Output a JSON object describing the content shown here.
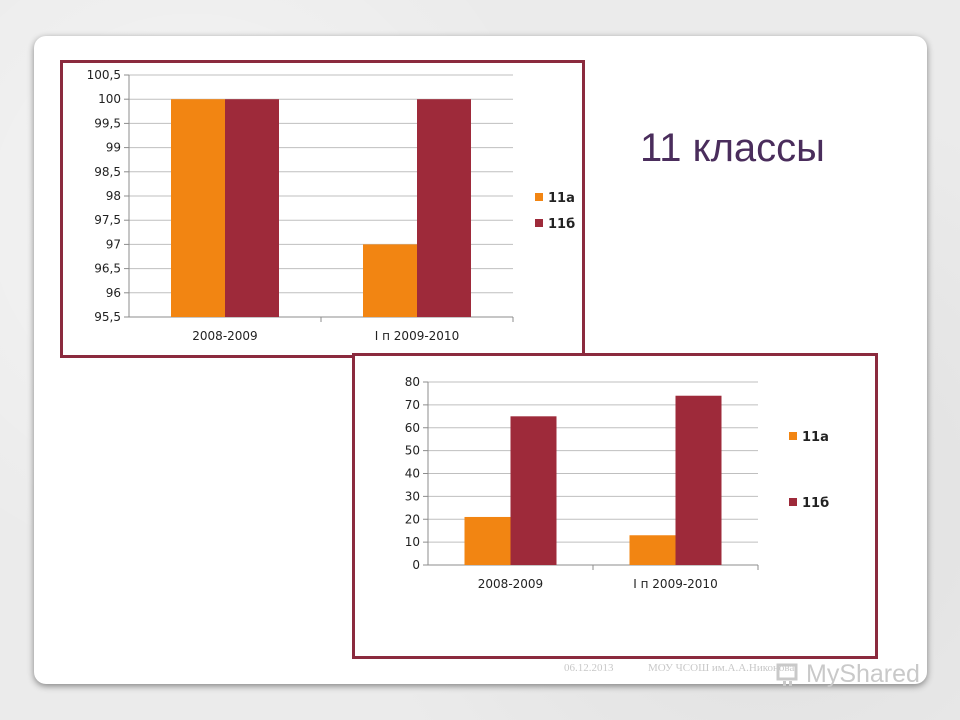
{
  "slide": {
    "title": "11 классы",
    "footer_date": "06.12.2013",
    "footer_org": "МОУ ЧСОШ им.А.А.Никонова",
    "watermark": "MyShared"
  },
  "colors": {
    "series_a": "#f28512",
    "series_b": "#9e2a3a",
    "frame": "#8b2a3e",
    "title": "#4a2d5c"
  },
  "chart_data": [
    {
      "type": "bar",
      "categories": [
        "2008-2009",
        "I п 2009-2010"
      ],
      "series": [
        {
          "name": "11а",
          "values": [
            100,
            97
          ]
        },
        {
          "name": "11б",
          "values": [
            100,
            100
          ]
        }
      ],
      "yticks": [
        "95,5",
        "96",
        "96,5",
        "97",
        "97,5",
        "98",
        "98,5",
        "99",
        "99,5",
        "100",
        "100,5"
      ],
      "ylim": [
        95.5,
        100.5
      ],
      "grid": true,
      "legend": "right"
    },
    {
      "type": "bar",
      "categories": [
        "2008-2009",
        "I п 2009-2010"
      ],
      "series": [
        {
          "name": "11а",
          "values": [
            21,
            13
          ]
        },
        {
          "name": "11б",
          "values": [
            65,
            74
          ]
        }
      ],
      "yticks": [
        "0",
        "10",
        "20",
        "30",
        "40",
        "50",
        "60",
        "70",
        "80"
      ],
      "ylim": [
        0,
        80
      ],
      "grid": true,
      "legend": "right"
    }
  ]
}
